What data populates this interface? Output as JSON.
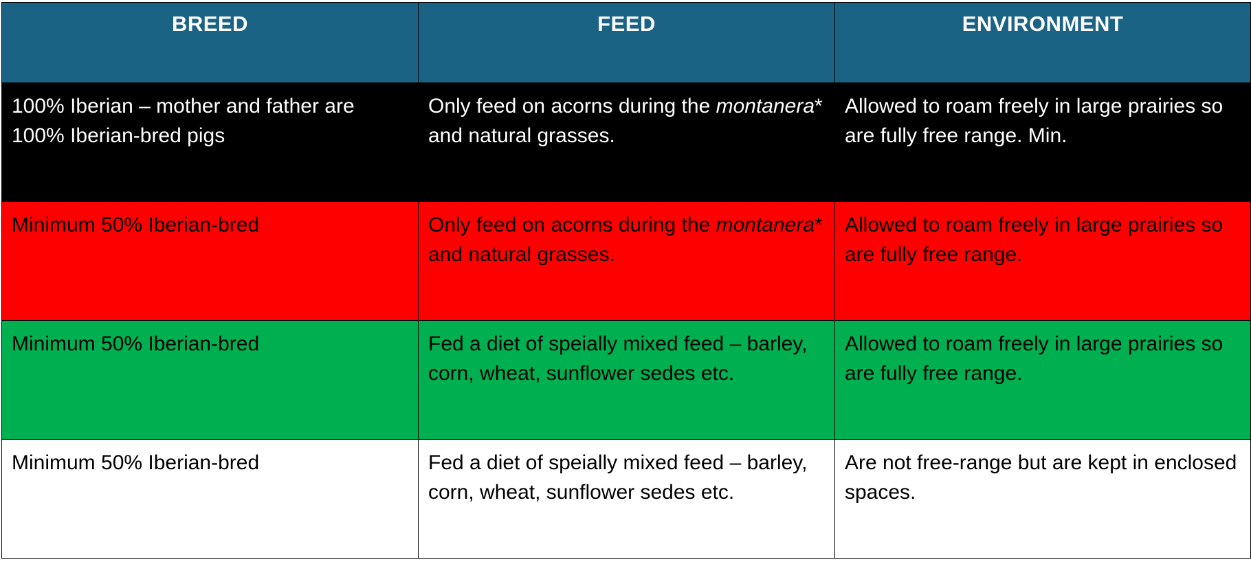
{
  "header": {
    "breed": "BREED",
    "feed": "FEED",
    "environment": "ENVIRONMENT"
  },
  "colors": {
    "header_bg": "#1a6384",
    "row1_bg": "#000000",
    "row2_bg": "#ff0000",
    "row3_bg": "#00b050",
    "row4_bg": "#ffffff"
  },
  "rows": [
    {
      "breed": "100% Iberian – mother and father are 100% Iberian-bred pigs",
      "feed_lead": "Only feed on acorns during the ",
      "feed_em": "montanera",
      "feed_tail": "* and natural grasses.",
      "environment": "Allowed to roam freely in large prairies so are fully free range. Min."
    },
    {
      "breed": "Minimum 50% Iberian-bred",
      "feed_lead": "Only feed on acorns during the ",
      "feed_em": "montanera",
      "feed_tail": "* and natural grasses.",
      "environment": "Allowed to roam freely in large prairies so are fully free range."
    },
    {
      "breed": "Minimum 50% Iberian-bred",
      "feed": "Fed a diet of speially mixed feed – barley, corn, wheat, sunflower sedes etc.",
      "environment": "Allowed to roam freely in large prairies so are fully free range."
    },
    {
      "breed": "Minimum 50% Iberian-bred",
      "feed": "Fed a diet of speially mixed feed – barley, corn, wheat, sunflower sedes etc.",
      "environment": "Are not free-range but are kept in enclosed spaces."
    }
  ]
}
